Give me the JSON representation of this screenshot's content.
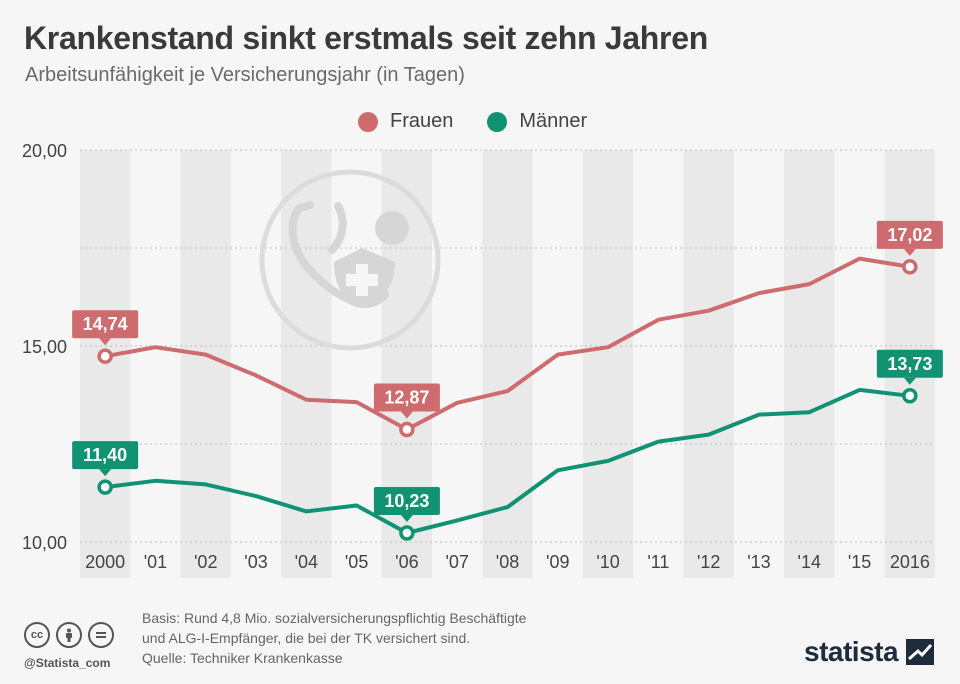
{
  "title": "Krankenstand sinkt erstmals seit zehn Jahren",
  "subtitle": "Arbeitsunfähigkeit je Versicherungsjahr (in Tagen)",
  "legend": [
    {
      "label": "Frauen",
      "color": "#cd6b6e"
    },
    {
      "label": "Männer",
      "color": "#119373"
    }
  ],
  "chart_data": {
    "type": "line",
    "categories": [
      "2000",
      "'01",
      "'02",
      "'03",
      "'04",
      "'05",
      "'06",
      "'07",
      "'08",
      "'09",
      "'10",
      "'11",
      "'12",
      "'13",
      "'14",
      "'15",
      "2016"
    ],
    "series": [
      {
        "name": "Frauen",
        "color": "#cd6b6e",
        "values": [
          14.74,
          14.97,
          14.78,
          14.25,
          13.63,
          13.57,
          12.87,
          13.55,
          13.85,
          14.78,
          14.97,
          15.67,
          15.9,
          16.35,
          16.58,
          17.23,
          17.02
        ]
      },
      {
        "name": "Männer",
        "color": "#119373",
        "values": [
          11.4,
          11.56,
          11.47,
          11.17,
          10.78,
          10.93,
          10.23,
          10.55,
          10.89,
          11.83,
          12.07,
          12.56,
          12.74,
          13.25,
          13.31,
          13.88,
          13.73
        ]
      }
    ],
    "labeled_points": [
      {
        "series": 0,
        "index": 0,
        "text": "14,74"
      },
      {
        "series": 0,
        "index": 6,
        "text": "12,87"
      },
      {
        "series": 0,
        "index": 16,
        "text": "17,02"
      },
      {
        "series": 1,
        "index": 0,
        "text": "11,40"
      },
      {
        "series": 1,
        "index": 6,
        "text": "10,23"
      },
      {
        "series": 1,
        "index": 16,
        "text": "13,73"
      }
    ],
    "yticks": [
      {
        "value": 10,
        "label": "10,00"
      },
      {
        "value": 15,
        "label": "15,00"
      },
      {
        "value": 20,
        "label": "20,00"
      }
    ],
    "ylim": [
      10,
      20
    ],
    "grid": true,
    "legend_position": "top-center"
  },
  "icon": "stethoscope-shield-icon",
  "footer": {
    "basis_line1": "Basis: Rund 4,8 Mio. sozialversicherungspflichtig Beschäftigte",
    "basis_line2": "und ALG-I-Empfänger, die bei der TK versichert sind.",
    "source": "Quelle: Techniker Krankenkasse",
    "handle": "@Statista_com",
    "brand": "statista",
    "license_icons": [
      "cc-icon",
      "by-icon",
      "nd-icon"
    ]
  }
}
